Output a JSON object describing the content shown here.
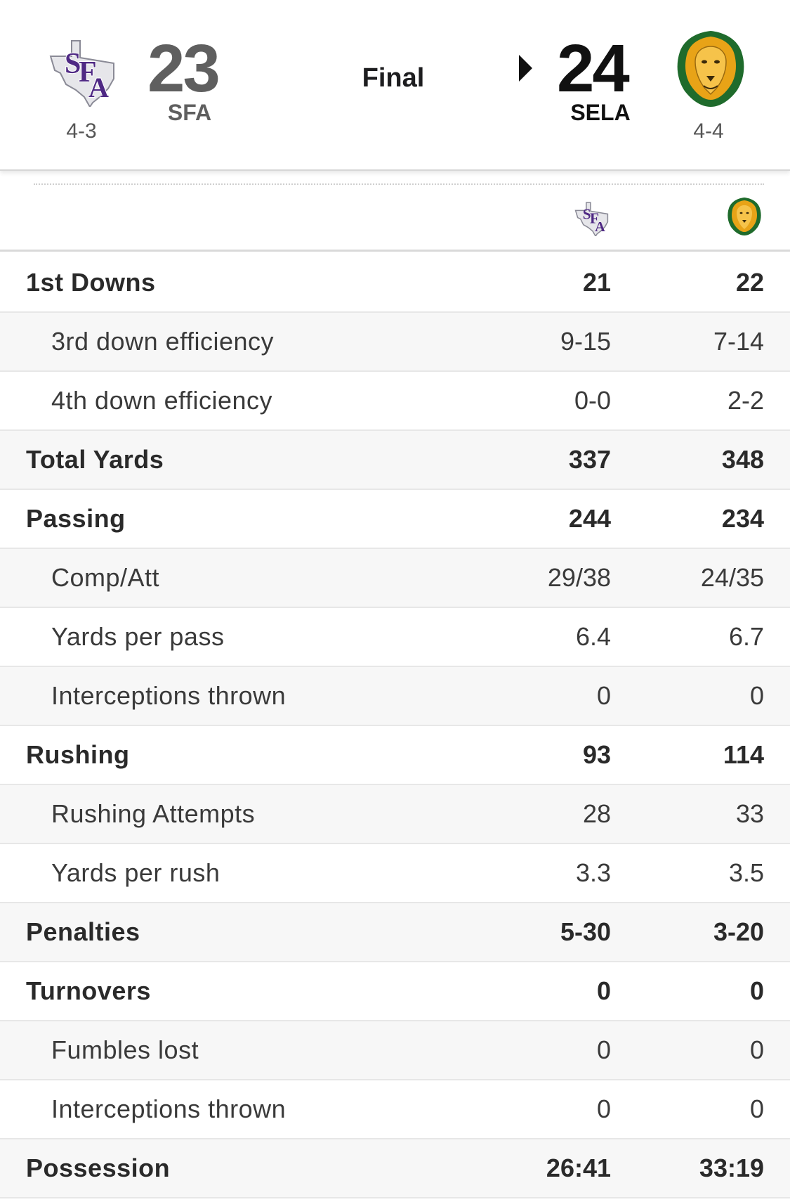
{
  "game": {
    "status": "Final",
    "away": {
      "abbr": "SFA",
      "score": "23",
      "record": "4-3",
      "logo_icon": "sfa-lumberjacks-logo-icon",
      "color": "#4f2984"
    },
    "home": {
      "abbr": "SELA",
      "score": "24",
      "record": "4-4",
      "logo_icon": "southeastern-lions-logo-icon",
      "color": "#1f5f2a",
      "winner": true
    }
  },
  "stats": [
    {
      "label": "1st Downs",
      "away": "21",
      "home": "22",
      "level": "main"
    },
    {
      "label": "3rd down efficiency",
      "away": "9-15",
      "home": "7-14",
      "level": "sub"
    },
    {
      "label": "4th down efficiency",
      "away": "0-0",
      "home": "2-2",
      "level": "sub"
    },
    {
      "label": "Total Yards",
      "away": "337",
      "home": "348",
      "level": "main"
    },
    {
      "label": "Passing",
      "away": "244",
      "home": "234",
      "level": "main"
    },
    {
      "label": "Comp/Att",
      "away": "29/38",
      "home": "24/35",
      "level": "sub"
    },
    {
      "label": "Yards per pass",
      "away": "6.4",
      "home": "6.7",
      "level": "sub"
    },
    {
      "label": "Interceptions thrown",
      "away": "0",
      "home": "0",
      "level": "sub"
    },
    {
      "label": "Rushing",
      "away": "93",
      "home": "114",
      "level": "main"
    },
    {
      "label": "Rushing Attempts",
      "away": "28",
      "home": "33",
      "level": "sub"
    },
    {
      "label": "Yards per rush",
      "away": "3.3",
      "home": "3.5",
      "level": "sub"
    },
    {
      "label": "Penalties",
      "away": "5-30",
      "home": "3-20",
      "level": "main"
    },
    {
      "label": "Turnovers",
      "away": "0",
      "home": "0",
      "level": "main"
    },
    {
      "label": "Fumbles lost",
      "away": "0",
      "home": "0",
      "level": "sub"
    },
    {
      "label": "Interceptions thrown",
      "away": "0",
      "home": "0",
      "level": "sub"
    },
    {
      "label": "Possession",
      "away": "26:41",
      "home": "33:19",
      "level": "main"
    }
  ]
}
